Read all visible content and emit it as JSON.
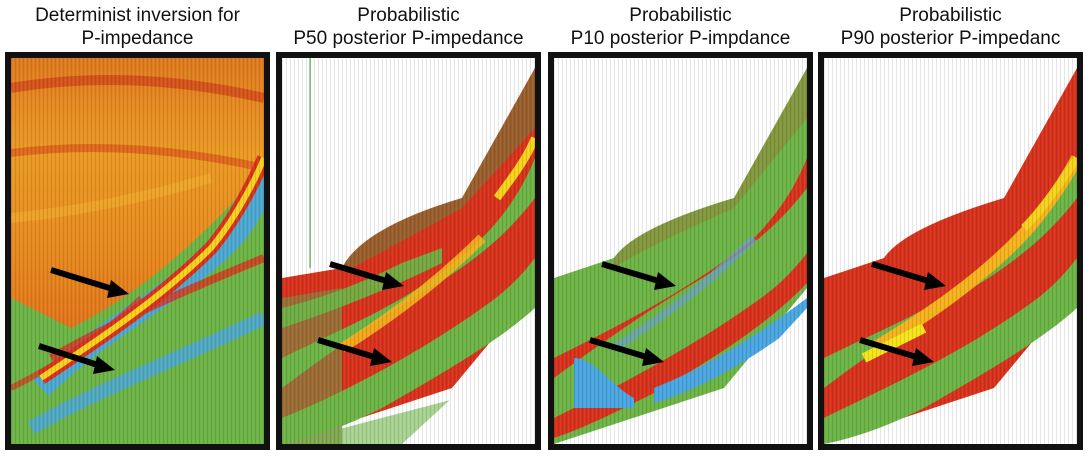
{
  "figure": {
    "panels": [
      {
        "title_line1": "Determinist inversion for",
        "title_line2": "P-impedance"
      },
      {
        "title_line1": "Probabilistic",
        "title_line2": "P50 posterior P-impedance"
      },
      {
        "title_line1": "Probabilistic",
        "title_line2": "P10 posterior P-impdance"
      },
      {
        "title_line1": "Probabilistic",
        "title_line2": "P90 posterior P-impedanc"
      }
    ],
    "colors": {
      "orange": "#e8891c",
      "red": "#d8321c",
      "yellow": "#f5d21c",
      "green": "#6cb446",
      "blue": "#4aa6e0",
      "frame": "#111111"
    }
  }
}
